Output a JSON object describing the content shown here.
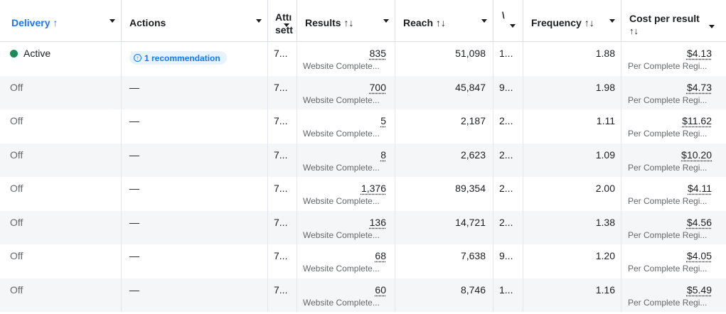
{
  "columns": {
    "delivery": "Delivery ↑",
    "actions": "Actions",
    "attribution_l1": "Attı",
    "attribution_l2": "sett",
    "results": "Results ↑↓",
    "reach": "Reach ↑↓",
    "v": "\\",
    "frequency": "Frequency ↑↓",
    "cost_l1": "Cost per result",
    "cost_l2": "↑↓"
  },
  "colors": {
    "accent": "#1877f2",
    "active_dot": "#1b8b5a"
  },
  "icons": {
    "recommendation": "arrow-up-circle-icon",
    "sort_caret": "caret-down-icon"
  },
  "rows": [
    {
      "status": "Active",
      "active": true,
      "action": "1 recommendation",
      "attr": "7...",
      "results": "835",
      "results_type": "Website Complete...",
      "reach": "51,098",
      "v": "1...",
      "frequency": "1.88",
      "cost": "$4.13",
      "cost_type": "Per Complete Regi..."
    },
    {
      "status": "Off",
      "active": false,
      "action": "—",
      "attr": "7...",
      "results": "700",
      "results_type": "Website Complete...",
      "reach": "45,847",
      "v": "9...",
      "frequency": "1.98",
      "cost": "$4.73",
      "cost_type": "Per Complete Regi..."
    },
    {
      "status": "Off",
      "active": false,
      "action": "—",
      "attr": "7...",
      "results": "5",
      "results_type": "Website Complete...",
      "reach": "2,187",
      "v": "2...",
      "frequency": "1.11",
      "cost": "$11.62",
      "cost_type": "Per Complete Regi..."
    },
    {
      "status": "Off",
      "active": false,
      "action": "—",
      "attr": "7...",
      "results": "8",
      "results_type": "Website Complete...",
      "reach": "2,623",
      "v": "2...",
      "frequency": "1.09",
      "cost": "$10.20",
      "cost_type": "Per Complete Regi..."
    },
    {
      "status": "Off",
      "active": false,
      "action": "—",
      "attr": "7...",
      "results": "1,376",
      "results_type": "Website Complete...",
      "reach": "89,354",
      "v": "2...",
      "frequency": "2.00",
      "cost": "$4.11",
      "cost_type": "Per Complete Regi..."
    },
    {
      "status": "Off",
      "active": false,
      "action": "—",
      "attr": "7...",
      "results": "136",
      "results_type": "Website Complete...",
      "reach": "14,721",
      "v": "2...",
      "frequency": "1.38",
      "cost": "$4.56",
      "cost_type": "Per Complete Regi..."
    },
    {
      "status": "Off",
      "active": false,
      "action": "—",
      "attr": "7...",
      "results": "68",
      "results_type": "Website Complete...",
      "reach": "7,638",
      "v": "9...",
      "frequency": "1.20",
      "cost": "$4.05",
      "cost_type": "Per Complete Regi..."
    },
    {
      "status": "Off",
      "active": false,
      "action": "—",
      "attr": "7...",
      "results": "60",
      "results_type": "Website Complete...",
      "reach": "8,746",
      "v": "1...",
      "frequency": "1.16",
      "cost": "$5.49",
      "cost_type": "Per Complete Regi..."
    }
  ]
}
